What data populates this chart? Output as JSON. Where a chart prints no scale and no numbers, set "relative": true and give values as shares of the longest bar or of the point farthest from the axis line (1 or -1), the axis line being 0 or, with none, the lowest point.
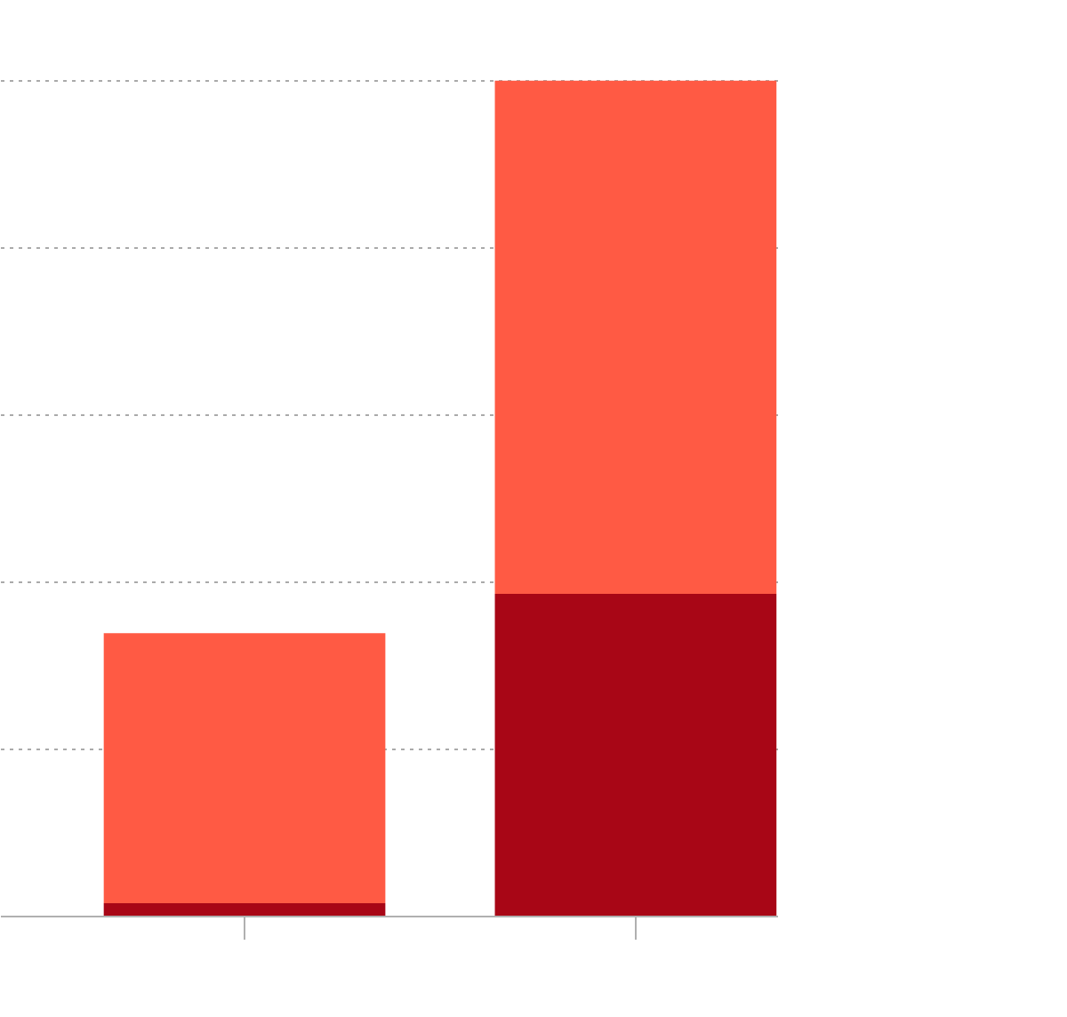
{
  "chart_data": {
    "type": "bar",
    "categories": [
      null,
      null
    ],
    "stacked": true,
    "relative": true,
    "series": [
      {
        "color": "#a80616",
        "values": [
          0.016,
          0.386
        ]
      },
      {
        "color": "#ff5a44",
        "values": [
          0.323,
          0.614
        ]
      }
    ],
    "grid": "y"
  }
}
